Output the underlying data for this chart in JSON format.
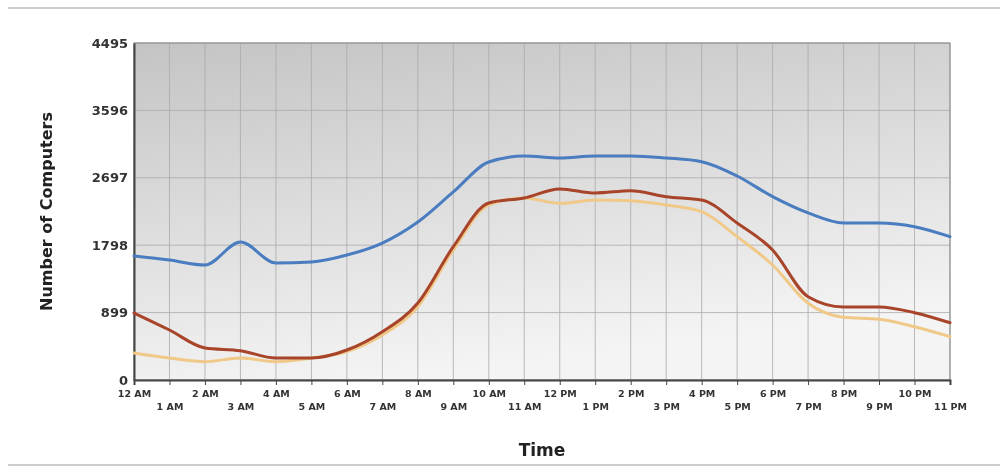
{
  "chart_data": {
    "type": "line",
    "xlabel": "Time",
    "ylabel": "Number of Computers",
    "categories": [
      "12 AM",
      "1 AM",
      "2 AM",
      "3 AM",
      "4 AM",
      "5 AM",
      "6 AM",
      "7 AM",
      "8 AM",
      "9 AM",
      "10 AM",
      "11 AM",
      "12 PM",
      "1 PM",
      "2 PM",
      "3 PM",
      "4 PM",
      "5 PM",
      "6 PM",
      "7 PM",
      "8 PM",
      "9 PM",
      "10 PM",
      "11 PM"
    ],
    "series": [
      {
        "color": "#4a7cc0",
        "values": [
          1654,
          1600,
          1534,
          1840,
          1560,
          1574,
          1667,
          1827,
          2108,
          2508,
          2908,
          2988,
          2961,
          2988,
          2988,
          2961,
          2912,
          2721,
          2445,
          2228,
          2094,
          2094,
          2045,
          1912
        ]
      },
      {
        "color": "#f0c888",
        "values": [
          360,
          293,
          244,
          293,
          244,
          293,
          378,
          600,
          978,
          1734,
          2335,
          2428,
          2357,
          2401,
          2392,
          2335,
          2245,
          1912,
          1534,
          1023,
          836,
          810,
          711,
          578
        ]
      },
      {
        "color": "#a8442a",
        "values": [
          894,
          667,
          427,
          391,
          293,
          293,
          400,
          644,
          1027,
          1778,
          2361,
          2428,
          2548,
          2494,
          2525,
          2445,
          2401,
          2094,
          1734,
          1111,
          974,
          974,
          898,
          764
        ]
      }
    ],
    "ylim": [
      0,
      4495
    ],
    "yticks": [
      0,
      899,
      1798,
      2697,
      3596,
      4495
    ],
    "grid": true,
    "line_style": "solid"
  }
}
